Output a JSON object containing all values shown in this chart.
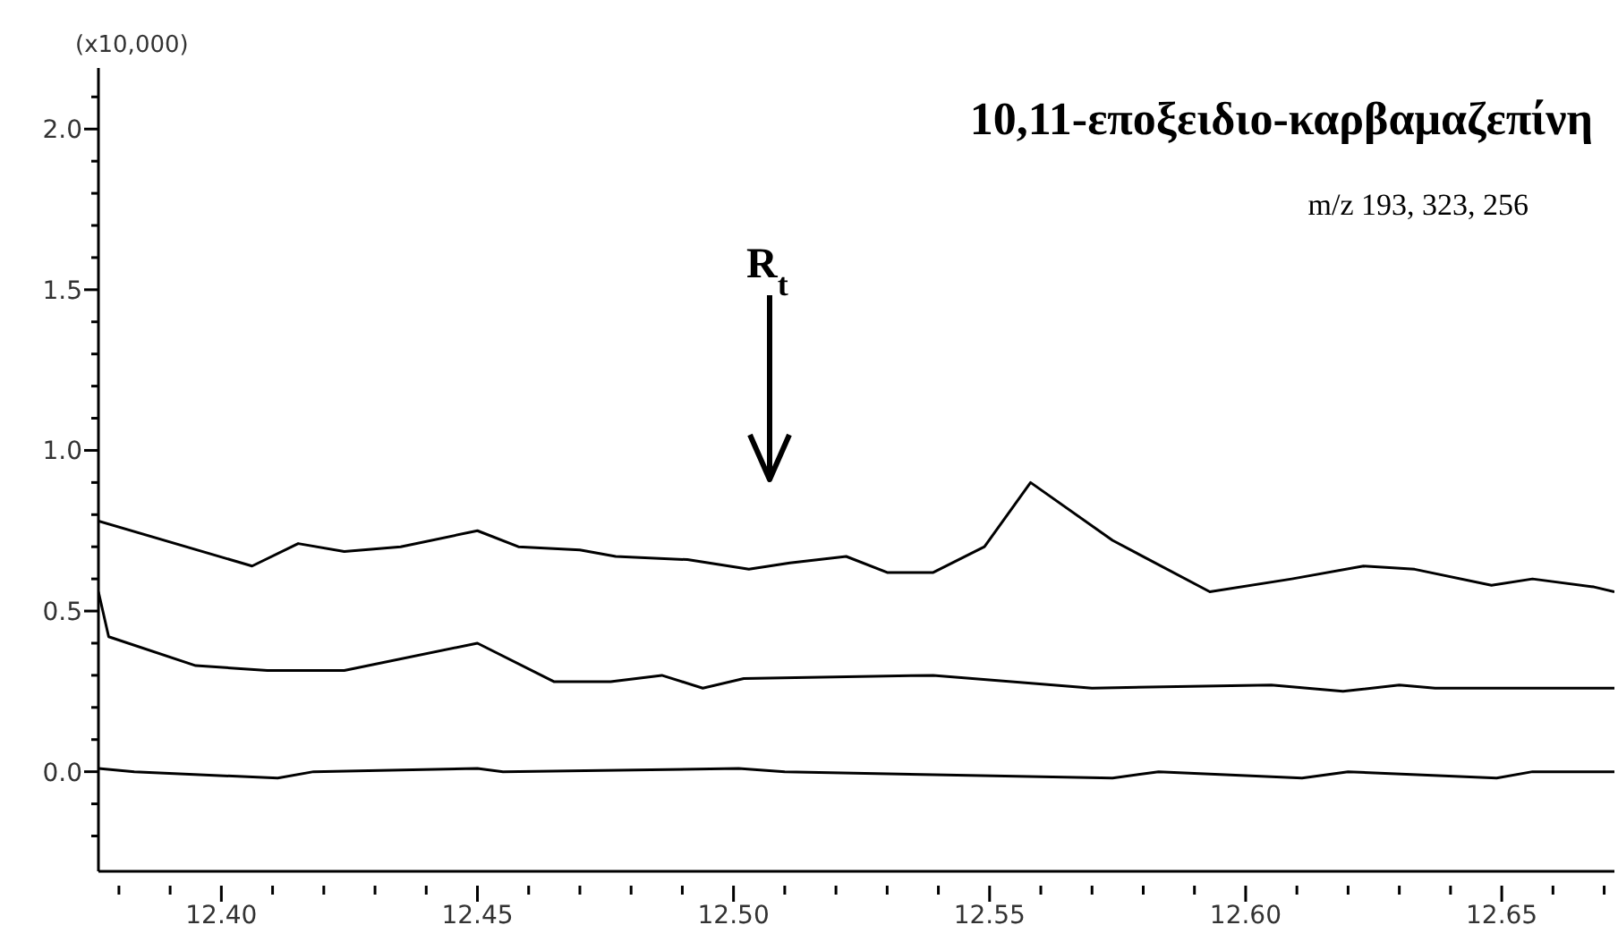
{
  "chart_data": {
    "type": "line",
    "title": "10,11-εποξειδιο-καρβαμαζεπίνη",
    "subtitle": "m/z 193, 323, 256",
    "ylabel": "(x10,000)",
    "annotations": [
      "R$_{t}$"
    ],
    "xlim": [
      12.376,
      12.672
    ],
    "ylim": [
      -0.31,
      2.19
    ],
    "xticks": [
      {
        "value": 12.38,
        "label": null
      },
      {
        "value": 12.39,
        "label": null
      },
      {
        "value": 12.4,
        "label": "12.40"
      },
      {
        "value": 12.41,
        "label": null
      },
      {
        "value": 12.42,
        "label": null
      },
      {
        "value": 12.43,
        "label": null
      },
      {
        "value": 12.44,
        "label": null
      },
      {
        "value": 12.45,
        "label": "12.45"
      },
      {
        "value": 12.46,
        "label": null
      },
      {
        "value": 12.47,
        "label": null
      },
      {
        "value": 12.48,
        "label": null
      },
      {
        "value": 12.49,
        "label": null
      },
      {
        "value": 12.5,
        "label": "12.50"
      },
      {
        "value": 12.51,
        "label": null
      },
      {
        "value": 12.52,
        "label": null
      },
      {
        "value": 12.53,
        "label": null
      },
      {
        "value": 12.54,
        "label": null
      },
      {
        "value": 12.55,
        "label": "12.55"
      },
      {
        "value": 12.56,
        "label": null
      },
      {
        "value": 12.57,
        "label": null
      },
      {
        "value": 12.58,
        "label": null
      },
      {
        "value": 12.59,
        "label": null
      },
      {
        "value": 12.6,
        "label": "12.60"
      },
      {
        "value": 12.61,
        "label": null
      },
      {
        "value": 12.62,
        "label": null
      },
      {
        "value": 12.63,
        "label": null
      },
      {
        "value": 12.64,
        "label": null
      },
      {
        "value": 12.65,
        "label": "12.65"
      },
      {
        "value": 12.66,
        "label": null
      },
      {
        "value": 12.67,
        "label": null
      }
    ],
    "yticks": [
      {
        "value": -0.2,
        "label": null
      },
      {
        "value": -0.1,
        "label": null
      },
      {
        "value": 0,
        "label": "0.0"
      },
      {
        "value": 0.1,
        "label": null
      },
      {
        "value": 0.2,
        "label": null
      },
      {
        "value": 0.3,
        "label": null
      },
      {
        "value": 0.4,
        "label": null
      },
      {
        "value": 0.5,
        "label": "0.5"
      },
      {
        "value": 0.6,
        "label": null
      },
      {
        "value": 0.7,
        "label": null
      },
      {
        "value": 0.8,
        "label": null
      },
      {
        "value": 0.9,
        "label": null
      },
      {
        "value": 1,
        "label": "1.0"
      },
      {
        "value": 1.1,
        "label": null
      },
      {
        "value": 1.2,
        "label": null
      },
      {
        "value": 1.3,
        "label": null
      },
      {
        "value": 1.4,
        "label": null
      },
      {
        "value": 1.5,
        "label": "1.5"
      },
      {
        "value": 1.6,
        "label": null
      },
      {
        "value": 1.7,
        "label": null
      },
      {
        "value": 1.8,
        "label": null
      },
      {
        "value": 1.9,
        "label": null
      },
      {
        "value": 2,
        "label": "2.0"
      },
      {
        "value": 2.1,
        "label": null
      }
    ],
    "series": [
      {
        "color": "#000000",
        "x": [
          12.376,
          12.406,
          12.415,
          12.424,
          12.435,
          12.45,
          12.458,
          12.47,
          12.477,
          12.491,
          12.503,
          12.511,
          12.522,
          12.53,
          12.539,
          12.549,
          12.558,
          12.574,
          12.593,
          12.609,
          12.623,
          12.633,
          12.648,
          12.656,
          12.668,
          12.672
        ],
        "values": [
          0.78,
          0.64,
          0.71,
          0.685,
          0.7,
          0.75,
          0.7,
          0.69,
          0.67,
          0.66,
          0.63,
          0.65,
          0.67,
          0.62,
          0.62,
          0.7,
          0.9,
          0.72,
          0.56,
          0.6,
          0.64,
          0.63,
          0.58,
          0.6,
          0.575,
          0.56
        ]
      },
      {
        "color": "#000000",
        "x": [
          12.376,
          12.378,
          12.395,
          12.409,
          12.424,
          12.45,
          12.465,
          12.476,
          12.486,
          12.494,
          12.502,
          12.539,
          12.57,
          12.605,
          12.619,
          12.63,
          12.637,
          12.672
        ],
        "values": [
          0.56,
          0.42,
          0.33,
          0.315,
          0.315,
          0.4,
          0.28,
          0.28,
          0.3,
          0.26,
          0.29,
          0.3,
          0.26,
          0.27,
          0.25,
          0.27,
          0.26,
          0.26
        ]
      },
      {
        "color": "#000000",
        "x": [
          12.376,
          12.383,
          12.411,
          12.418,
          12.45,
          12.455,
          12.501,
          12.51,
          12.574,
          12.583,
          12.611,
          12.62,
          12.649,
          12.656,
          12.672
        ],
        "values": [
          0.01,
          0,
          -0.02,
          0,
          0.01,
          0,
          0.01,
          0,
          -0.02,
          0,
          -0.02,
          0,
          -0.02,
          0,
          0
        ]
      }
    ]
  }
}
